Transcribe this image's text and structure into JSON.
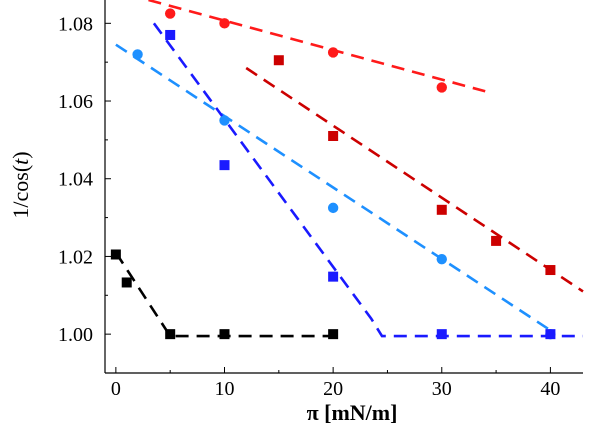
{
  "chart_data": {
    "type": "scatter",
    "xlabel": "π [mN/m]",
    "ylabel_main": "1/cos(",
    "ylabel_var": "t",
    "ylabel_close": ")",
    "xlim": [
      -1,
      43
    ],
    "ylim": [
      0.99,
      1.086
    ],
    "xticks": [
      0,
      10,
      20,
      30,
      40
    ],
    "yticks": [
      1.0,
      1.02,
      1.04,
      1.06,
      1.08
    ],
    "xtick_labels": [
      "0",
      "10",
      "20",
      "30",
      "40"
    ],
    "ytick_labels": [
      "1.00",
      "1.02",
      "1.04",
      "1.06",
      "1.08"
    ],
    "grid": false,
    "series": [
      {
        "marker": "circle",
        "color": "#ff1a1a",
        "points": [
          [
            5,
            1.0825
          ],
          [
            10,
            1.08
          ],
          [
            20,
            1.0725
          ],
          [
            30,
            1.0635
          ]
        ],
        "fit": [
          [
            3,
            1.086
          ],
          [
            34,
            1.0625
          ]
        ]
      },
      {
        "marker": "square",
        "color": "#cc0000",
        "points": [
          [
            15,
            1.0705
          ],
          [
            20,
            1.051
          ],
          [
            30,
            1.032
          ],
          [
            35,
            1.024
          ],
          [
            40,
            1.0165
          ]
        ],
        "fit": [
          [
            12,
            1.0685
          ],
          [
            43,
            1.011
          ]
        ]
      },
      {
        "marker": "circle",
        "color": "#1e90ff",
        "points": [
          [
            2,
            1.072
          ],
          [
            10,
            1.055
          ],
          [
            20,
            1.0325
          ],
          [
            30,
            1.0193
          ],
          [
            40,
            1.0
          ]
        ],
        "fit": [
          [
            0,
            1.0745
          ],
          [
            40,
            1.001
          ]
        ]
      },
      {
        "marker": "square",
        "color": "#1a1aff",
        "points": [
          [
            5,
            1.077
          ],
          [
            10,
            1.0435
          ],
          [
            20,
            1.0148
          ],
          [
            30,
            1.0
          ],
          [
            40,
            1.0
          ]
        ],
        "fit": [
          [
            3.5,
            1.08
          ],
          [
            23.5,
            1.004
          ],
          [
            24.5,
            0.9995
          ],
          [
            43,
            0.9995
          ]
        ]
      },
      {
        "marker": "square",
        "color": "#000000",
        "points": [
          [
            0,
            1.0205
          ],
          [
            1,
            1.0133
          ],
          [
            5,
            1.0
          ],
          [
            10,
            1.0
          ],
          [
            20,
            1.0
          ]
        ],
        "fit": [
          [
            0,
            1.021
          ],
          [
            5,
            0.9995
          ],
          [
            20,
            0.9995
          ]
        ]
      }
    ]
  }
}
